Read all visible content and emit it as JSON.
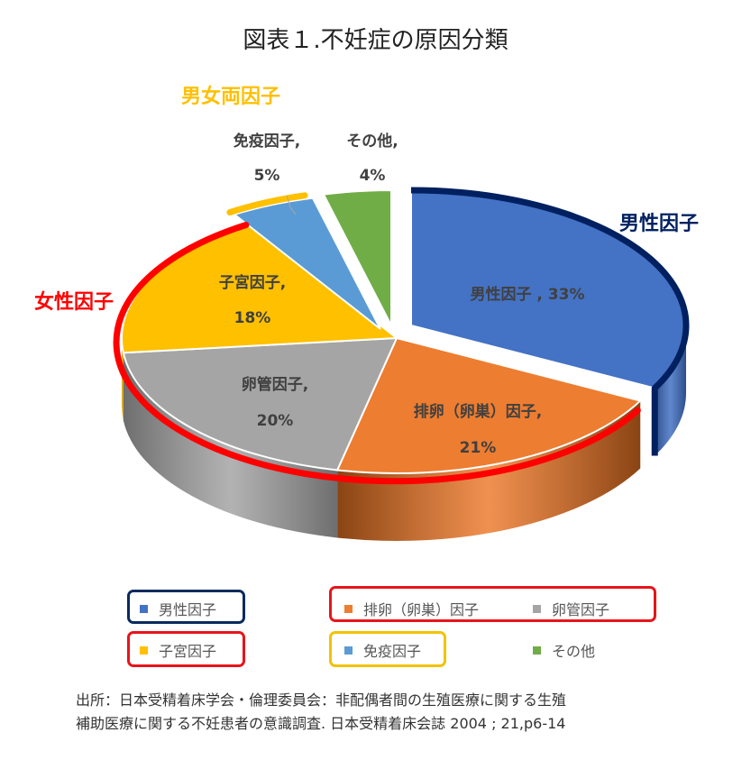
{
  "title": "図表１.不妊症の原因分類",
  "chart_data": {
    "type": "pie",
    "title": "図表１.不妊症の原因分類",
    "slices": [
      {
        "name": "男性因子",
        "value": 33,
        "label": "男性因子 , 33%",
        "color": "#4472C4",
        "dark": "#2D4E8A"
      },
      {
        "name": "排卵（卵巣）因子",
        "value": 21,
        "label_line1": "排卵（卵巣）因子,",
        "label_line2": "21%",
        "color": "#ED7D31",
        "dark": "#8A4414"
      },
      {
        "name": "卵管因子",
        "value": 20,
        "label_line1": "卵管因子,",
        "label_line2": "20%",
        "color": "#A5A5A5",
        "dark": "#6E6E6E"
      },
      {
        "name": "子宮因子",
        "value": 18,
        "label_line1": "子宮因子,",
        "label_line2": "18%",
        "color": "#FFC000",
        "dark": "#B08500"
      },
      {
        "name": "免疫因子",
        "value": 5,
        "label_line1": "免疫因子,",
        "label_line2": "5%",
        "color": "#5B9BD5",
        "dark": "#3A6E9E"
      },
      {
        "name": "その他",
        "value": 4,
        "label_line1": "その他,",
        "label_line2": "4%",
        "color": "#70AD47",
        "dark": "#4A7A2C"
      }
    ],
    "legend_placement": "bottom"
  },
  "callouts": {
    "male": {
      "text": "男性因子",
      "color": "#002060"
    },
    "female": {
      "text": "女性因子",
      "color": "#FF0000"
    },
    "both": {
      "text": "男女両因子",
      "color": "#FFC000"
    }
  },
  "legend": {
    "items": [
      "男性因子",
      "排卵（卵巣）因子",
      "卵管因子",
      "子宮因子",
      "免疫因子",
      "その他"
    ],
    "colors": [
      "#4472C4",
      "#ED7D31",
      "#A5A5A5",
      "#FFC000",
      "#5B9BD5",
      "#70AD47"
    ]
  },
  "source": {
    "line1": "出所：日本受精着床学会・倫理委員会：非配偶者間の生殖医療に関する生殖",
    "line2": "補助医療に関する不妊患者の意識調査. 日本受精着床会誌 2004 ; 21,p6-14"
  }
}
